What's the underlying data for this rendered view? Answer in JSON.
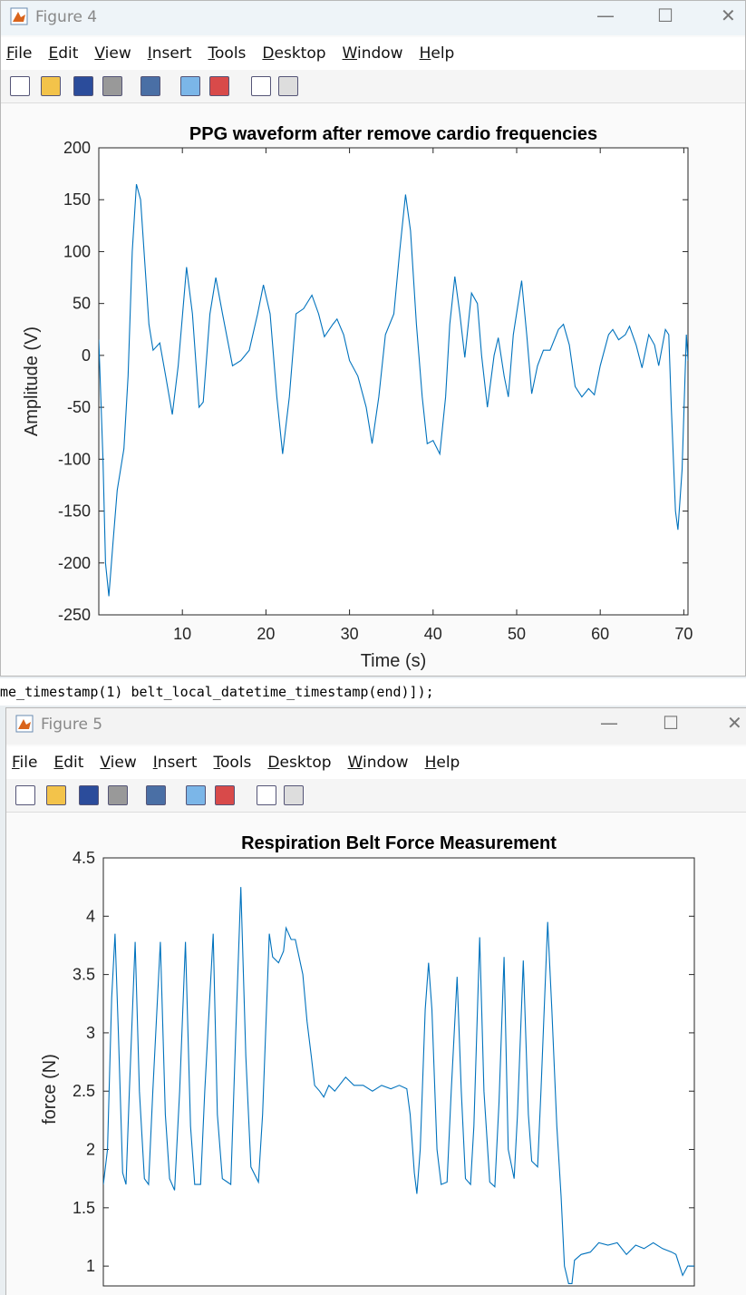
{
  "windows": [
    {
      "title": "Figure 4",
      "menu": [
        "File",
        "Edit",
        "View",
        "Insert",
        "Tools",
        "Desktop",
        "Window",
        "Help"
      ],
      "chart_data": {
        "type": "line",
        "title": "PPG waveform after remove cardio frequencies",
        "xlabel": "Time (s)",
        "ylabel": "Amplitude (V)",
        "xlim": [
          0,
          70.5
        ],
        "ylim": [
          -250,
          200
        ],
        "xticks": [
          10,
          20,
          30,
          40,
          50,
          60,
          70
        ],
        "yticks": [
          -250,
          -200,
          -150,
          -100,
          -50,
          0,
          50,
          100,
          150,
          200
        ],
        "series": [
          {
            "color": "#0072bd",
            "x": [
              0,
              0.5,
              0.8,
              1.2,
              1.7,
              2.2,
              3,
              3.5,
              4,
              4.5,
              5,
              5.5,
              6,
              6.5,
              7.3,
              8,
              8.8,
              9.5,
              10.5,
              11.2,
              12,
              12.5,
              13.3,
              14,
              14.8,
              16,
              17,
              18,
              19,
              19.7,
              20.5,
              21.3,
              22,
              22.8,
              23.6,
              24.5,
              25.5,
              26.3,
              27,
              28,
              28.5,
              29.3,
              30,
              31,
              32,
              32.7,
              33.5,
              34.3,
              35.3,
              36,
              36.7,
              37.3,
              38,
              38.7,
              39.3,
              40,
              40.8,
              41.5,
              42,
              42.6,
              43.2,
              43.8,
              44.6,
              45.3,
              45.8,
              46.5,
              47.3,
              47.8,
              48.5,
              49,
              49.6,
              50.6,
              51.2,
              51.8,
              52.5,
              53.2,
              54,
              55,
              55.6,
              56.3,
              57,
              57.8,
              58.6,
              59.3,
              60,
              61,
              61.5,
              62.2,
              63,
              63.5,
              64.3,
              65,
              65.8,
              66.5,
              67,
              67.8,
              68.2,
              68.5,
              69,
              69.3,
              69.8,
              70.3,
              70.5
            ],
            "values": [
              15,
              -100,
              -200,
              -232,
              -180,
              -130,
              -90,
              -20,
              100,
              165,
              150,
              90,
              30,
              5,
              12,
              -20,
              -57,
              -10,
              85,
              40,
              -50,
              -45,
              40,
              75,
              40,
              -10,
              -5,
              5,
              40,
              68,
              40,
              -40,
              -95,
              -40,
              40,
              45,
              58,
              40,
              18,
              30,
              35,
              20,
              -5,
              -20,
              -50,
              -85,
              -40,
              20,
              40,
              100,
              155,
              120,
              30,
              -40,
              -85,
              -82,
              -95,
              -40,
              30,
              76,
              40,
              -2,
              60,
              50,
              0,
              -50,
              0,
              17,
              -20,
              -40,
              20,
              72,
              20,
              -37,
              -10,
              5,
              5,
              25,
              30,
              10,
              -30,
              -40,
              -32,
              -38,
              -10,
              20,
              25,
              15,
              20,
              28,
              10,
              -12,
              20,
              10,
              -10,
              25,
              20,
              -50,
              -150,
              -168,
              -110,
              20,
              -5
            ]
          }
        ]
      }
    },
    {
      "title": "Figure 5",
      "menu": [
        "File",
        "Edit",
        "View",
        "Insert",
        "Tools",
        "Desktop",
        "Window",
        "Help"
      ],
      "chart_data": {
        "type": "line",
        "title": "Respiration Belt Force Measurement",
        "ylabel": "force (N)",
        "xlim": [
          0,
          70.5
        ],
        "ylim": [
          0.83,
          4.5
        ],
        "yticks": [
          1,
          1.5,
          2,
          2.5,
          3,
          3.5,
          4,
          4.5
        ],
        "series": [
          {
            "color": "#0072bd",
            "x": [
              0,
              0.5,
              1.0,
              1.4,
              1.8,
              2.3,
              2.7,
              3.1,
              3.8,
              4.3,
              4.9,
              5.4,
              5.9,
              6.8,
              7.4,
              7.9,
              8.5,
              9.1,
              9.8,
              10.4,
              10.9,
              11.6,
              12.1,
              13.1,
              13.6,
              14.2,
              14.8,
              15.2,
              15.8,
              16.4,
              17.0,
              17.6,
              18.5,
              19.0,
              19.8,
              20.2,
              20.9,
              21.5,
              21.8,
              22.4,
              22.9,
              23.8,
              24.3,
              24.8,
              25.2,
              25.8,
              26.3,
              26.9,
              27.6,
              28.9,
              29.9,
              31.0,
              32.1,
              33.2,
              34.3,
              35.3,
              36.2,
              36.6,
              37.1,
              37.4,
              37.8,
              38.4,
              38.8,
              39.2,
              39.8,
              40.3,
              41.0,
              41.5,
              42.2,
              42.7,
              43.2,
              43.8,
              44.2,
              44.9,
              45.4,
              46.1,
              46.7,
              47.2,
              47.8,
              48.3,
              49.0,
              49.4,
              50.1,
              50.7,
              51.1,
              51.8,
              52.2,
              53.0,
              53.5,
              54.1,
              54.6,
              55.0,
              55.5,
              55.9,
              56.2,
              57.0,
              58.1,
              59.1,
              60.2,
              61.3,
              62.4,
              63.5,
              64.5,
              65.6,
              66.7,
              67.8,
              68.3,
              69.1,
              69.7,
              70.5
            ],
            "values": [
              1.7,
              2.0,
              3.3,
              3.85,
              3.0,
              1.8,
              1.7,
              2.5,
              3.78,
              2.5,
              1.75,
              1.7,
              2.5,
              3.78,
              2.3,
              1.75,
              1.65,
              2.5,
              3.78,
              2.2,
              1.7,
              1.7,
              2.5,
              3.85,
              2.3,
              1.75,
              1.72,
              1.7,
              3.0,
              4.25,
              2.8,
              1.85,
              1.72,
              2.3,
              3.85,
              3.65,
              3.6,
              3.7,
              3.9,
              3.8,
              3.8,
              3.5,
              3.1,
              2.8,
              2.55,
              2.5,
              2.45,
              2.55,
              2.5,
              2.62,
              2.55,
              2.55,
              2.5,
              2.55,
              2.52,
              2.55,
              2.52,
              2.3,
              1.8,
              1.62,
              2.0,
              3.2,
              3.6,
              3.2,
              2.0,
              1.7,
              1.72,
              2.5,
              3.48,
              2.5,
              1.75,
              1.7,
              2.2,
              3.82,
              2.5,
              1.72,
              1.68,
              2.4,
              3.65,
              2.0,
              1.75,
              2.3,
              3.62,
              2.3,
              1.9,
              1.85,
              2.5,
              3.95,
              3.2,
              2.2,
              1.6,
              1.0,
              0.85,
              0.85,
              1.05,
              1.1,
              1.12,
              1.2,
              1.18,
              1.2,
              1.1,
              1.18,
              1.15,
              1.2,
              1.15,
              1.12,
              1.1,
              0.92,
              1.0,
              1.0
            ]
          }
        ]
      }
    }
  ],
  "command_line": "me_timestamp(1) belt_local_datetime_timestamp(end)]);"
}
